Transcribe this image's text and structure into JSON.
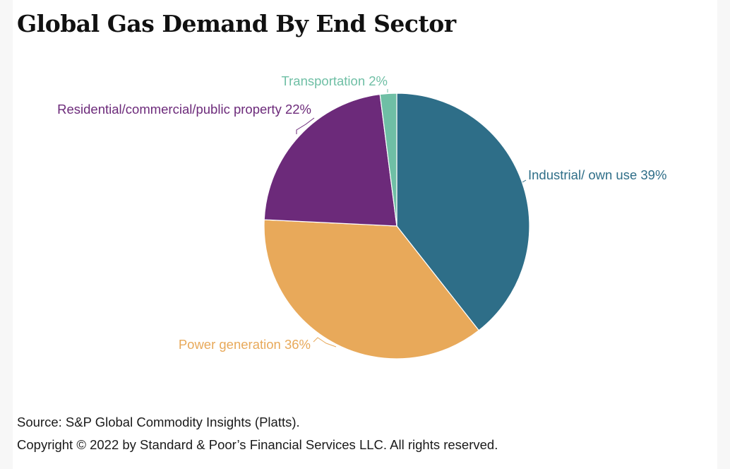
{
  "title": "Global Gas Demand By End Sector",
  "chart_data": {
    "type": "pie",
    "title": "Global Gas Demand By End Sector",
    "unit": "%",
    "slices": [
      {
        "name": "Industrial/ own use",
        "value": 39,
        "label": "Industrial/ own use 39%",
        "color": "#2e6e88"
      },
      {
        "name": "Power generation",
        "value": 36,
        "label": "Power generation 36%",
        "color": "#e8a95a"
      },
      {
        "name": "Residential/commercial/public property",
        "value": 22,
        "label": "Residential/commercial/public property 22%",
        "color": "#6c2a7a"
      },
      {
        "name": "Transportation",
        "value": 2,
        "label": "Transportation 2%",
        "color": "#6fbfa5"
      }
    ]
  },
  "footer": {
    "source": "Source: S&P Global Commodity Insights (Platts).",
    "copyright": "Copyright © 2022 by Standard & Poor’s Financial Services LLC. All rights reserved."
  }
}
